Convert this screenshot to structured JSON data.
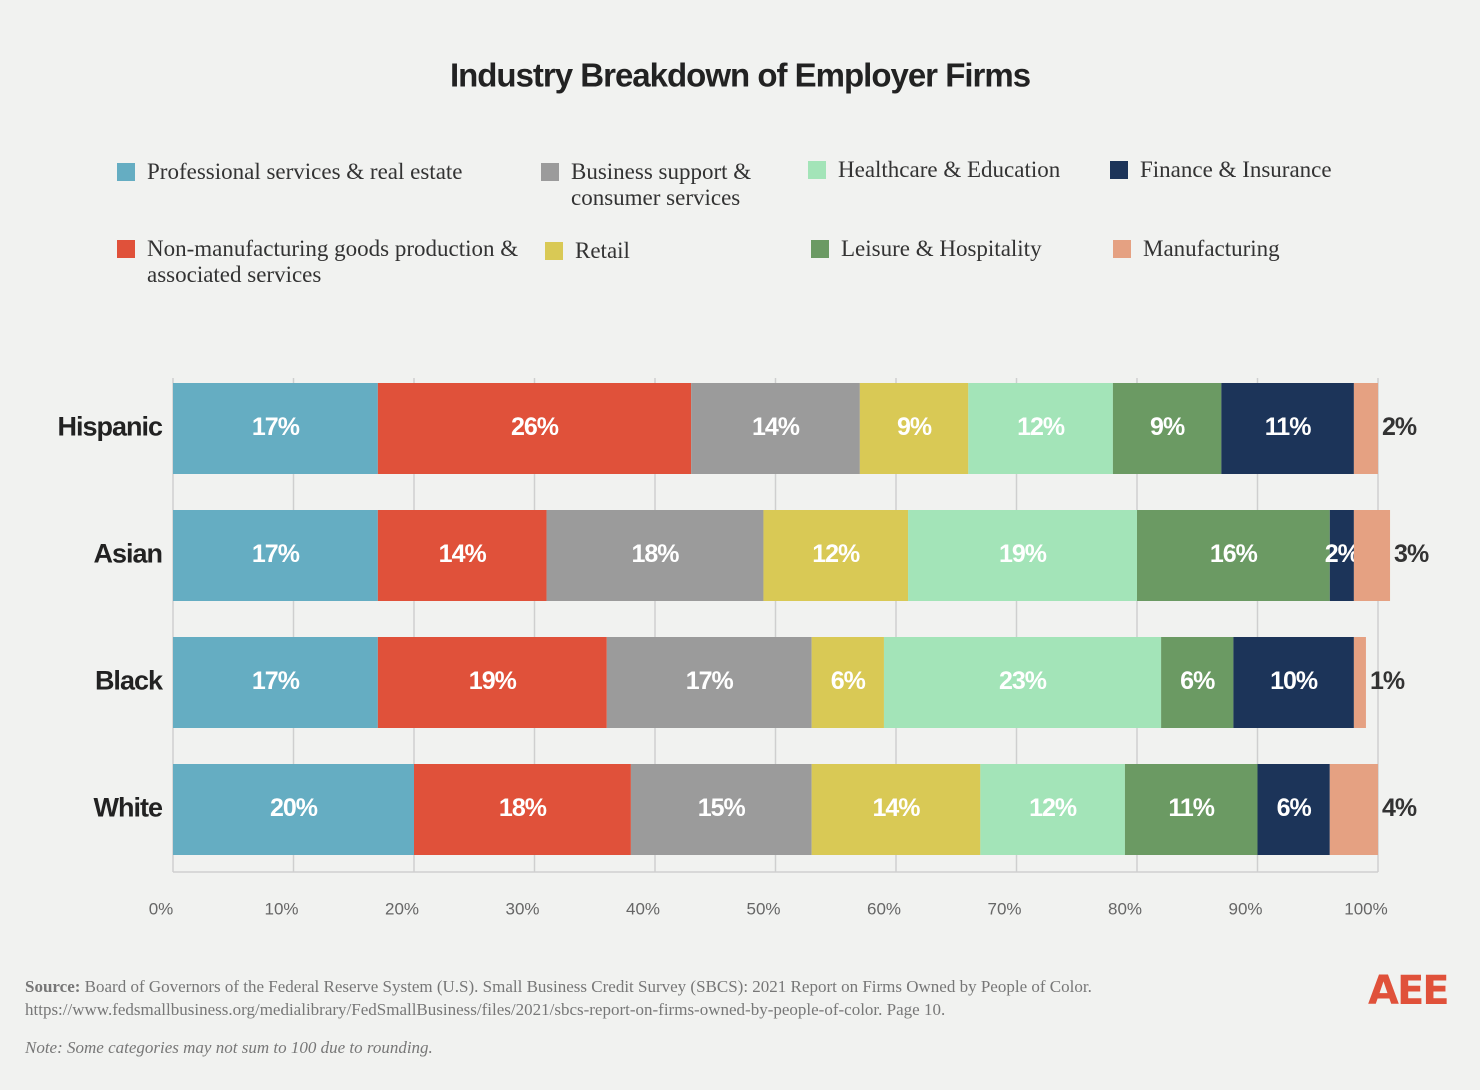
{
  "chart_data": {
    "type": "stacked-bar-horizontal",
    "title": "Industry Breakdown of Employer Firms",
    "categories": [
      "Hispanic",
      "Asian",
      "Black",
      "White"
    ],
    "series": [
      {
        "name": "Professional services & real estate",
        "color": "#65adc2",
        "values": [
          17,
          17,
          17,
          20
        ],
        "value_labels": [
          "17%",
          "17%",
          "17%",
          "20%"
        ]
      },
      {
        "name": "Non-manufacturing goods production & associated services",
        "color": "#e0513a",
        "values": [
          26,
          14,
          19,
          18
        ],
        "value_labels": [
          "26%",
          "14%",
          "19%",
          "18%"
        ]
      },
      {
        "name": "Business support & consumer services",
        "color": "#9b9b9b",
        "values": [
          14,
          18,
          17,
          15
        ],
        "value_labels": [
          "14%",
          "18%",
          "17%",
          "15%"
        ]
      },
      {
        "name": "Retail",
        "color": "#d9c955",
        "values": [
          9,
          12,
          6,
          14
        ],
        "value_labels": [
          "9%",
          "12%",
          "6%",
          "14%"
        ]
      },
      {
        "name": "Healthcare & Education",
        "color": "#a3e4b8",
        "values": [
          12,
          19,
          23,
          12
        ],
        "value_labels": [
          "12%",
          "19%",
          "23%",
          "12%"
        ]
      },
      {
        "name": "Leisure & Hospitality",
        "color": "#6b9a63",
        "values": [
          9,
          16,
          6,
          11
        ],
        "value_labels": [
          "9%",
          "16%",
          "6%",
          "11%"
        ]
      },
      {
        "name": "Finance & Insurance",
        "color": "#1c3459",
        "values": [
          11,
          2,
          10,
          6
        ],
        "value_labels": [
          "11%",
          "2%",
          "10%",
          "6%"
        ]
      },
      {
        "name": "Manufacturing",
        "color": "#e5a182",
        "values": [
          2,
          3,
          1,
          4
        ],
        "value_labels": [
          "2%",
          "3%",
          "1%",
          "4%"
        ]
      }
    ],
    "xlim": [
      0,
      100
    ],
    "xticks": [
      {
        "value": 0,
        "label": "0%"
      },
      {
        "value": 10,
        "label": "10%"
      },
      {
        "value": 20,
        "label": "20%"
      },
      {
        "value": 30,
        "label": "30%"
      },
      {
        "value": 40,
        "label": "40%"
      },
      {
        "value": 50,
        "label": "50%"
      },
      {
        "value": 60,
        "label": "60%"
      },
      {
        "value": 70,
        "label": "70%"
      },
      {
        "value": 80,
        "label": "80%"
      },
      {
        "value": 90,
        "label": "90%"
      },
      {
        "value": 100,
        "label": "100%"
      }
    ],
    "grid": true
  },
  "footer": {
    "source_label": "Source:",
    "source": "Board of Governors of the Federal Reserve System (U.S). Small Business Credit Survey (SBCS): 2021 Report on Firms Owned by People of Color. https://www.fedsmallbusiness.org/medialibrary/FedSmallBusiness/files/2021/sbcs-report-on-firms-owned-by-people-of-color. Page 10.",
    "note": "Note: Some categories may not sum to 100 due to rounding.",
    "logo": "AEE"
  }
}
